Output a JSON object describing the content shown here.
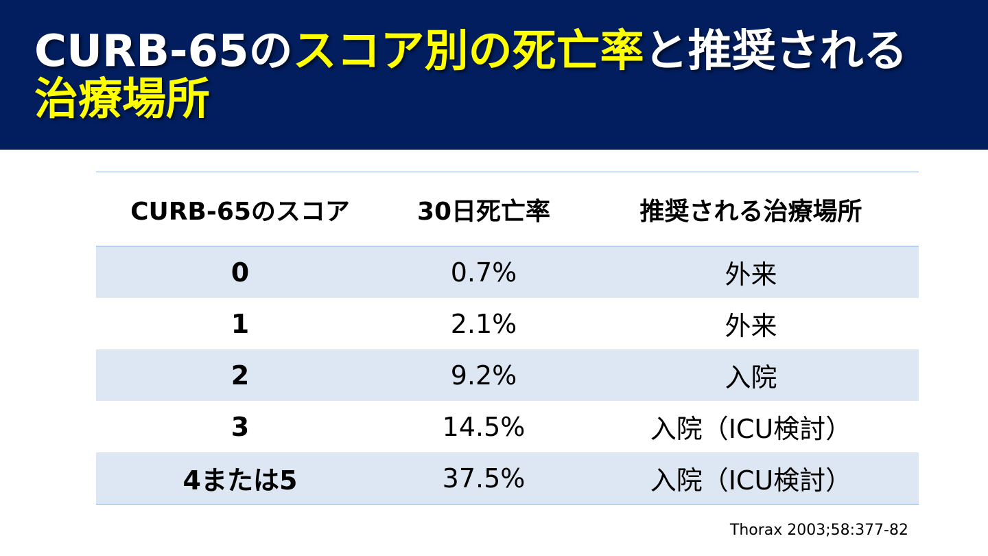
{
  "title": {
    "part1": "CURB-65の",
    "part2": "スコア別の死亡率",
    "part3": "と推奨される",
    "part4": "治療場所"
  },
  "table": {
    "headers": [
      "CURB-65のスコア",
      "30日死亡率",
      "推奨される治療場所"
    ],
    "rows": [
      {
        "score": "0",
        "mortality": "0.7%",
        "place": "外来"
      },
      {
        "score": "1",
        "mortality": "2.1%",
        "place": "外来"
      },
      {
        "score": "2",
        "mortality": "9.2%",
        "place": "入院"
      },
      {
        "score": "3",
        "mortality": "14.5%",
        "place": "入院（ICU検討）"
      },
      {
        "score": "4または5",
        "mortality": "37.5%",
        "place": "入院（ICU検討）"
      }
    ]
  },
  "citation": "Thorax 2003;58:377-82",
  "colors": {
    "header_bg": "#021e5f",
    "highlight": "#ffff00",
    "row_shade": "#dde7f3",
    "rule": "#8eaadb"
  }
}
